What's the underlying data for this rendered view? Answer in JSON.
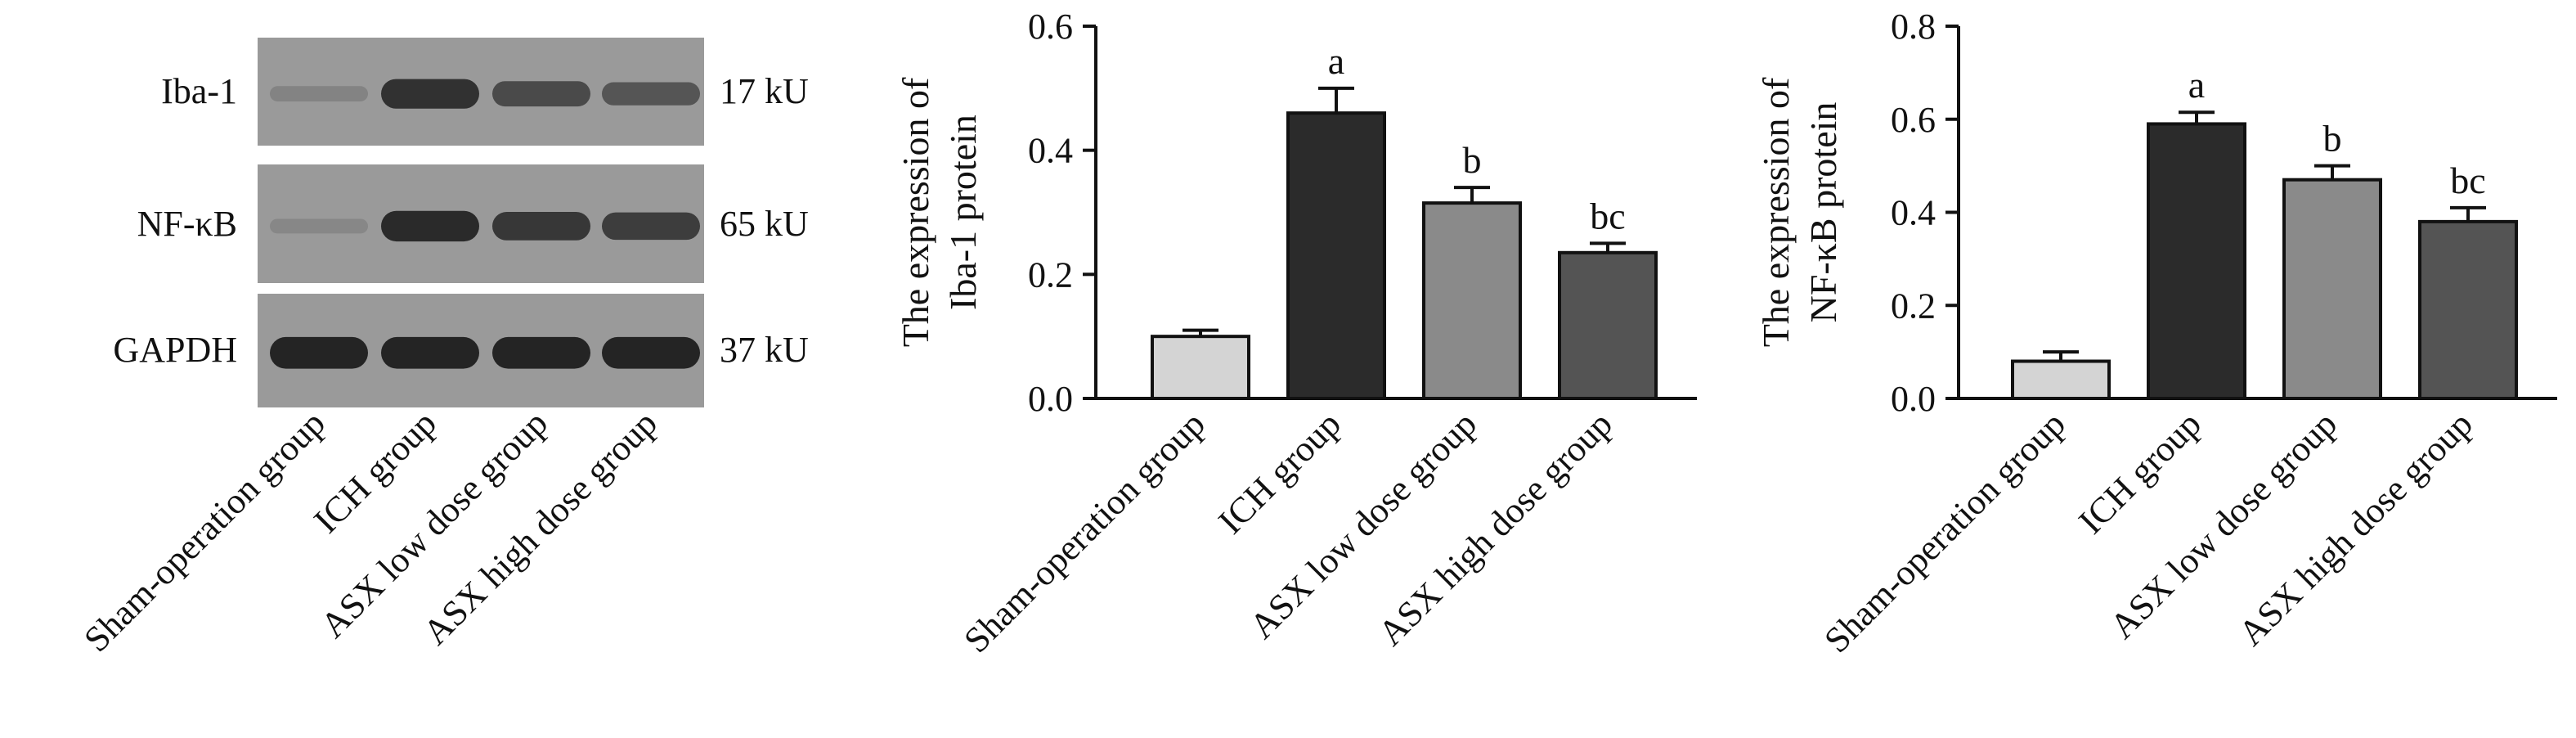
{
  "blot": {
    "rows": [
      {
        "protein": "Iba-1",
        "size": "17 kU",
        "intensities": [
          0.18,
          0.85,
          0.65,
          0.55
        ]
      },
      {
        "protein": "NF-κB",
        "size": "65 kU",
        "intensities": [
          0.15,
          0.9,
          0.8,
          0.75
        ]
      },
      {
        "protein": "GAPDH",
        "size": "37 kU",
        "intensities": [
          0.95,
          0.95,
          0.95,
          0.95
        ]
      }
    ],
    "lanes": [
      "Sham-operation group",
      "ICH group",
      "ASX low dose group",
      "ASX high dose group"
    ],
    "colors": {
      "background": "#9a9a9a",
      "band": "#1e1e1e"
    }
  },
  "chart_data": [
    {
      "type": "bar",
      "title": "",
      "xlabel": "",
      "ylabel": [
        "The expression of",
        "Iba-1 protein"
      ],
      "categories": [
        "Sham-operation group",
        "ICH group",
        "ASX low dose group",
        "ASX high dose group"
      ],
      "values": [
        0.1,
        0.46,
        0.315,
        0.235
      ],
      "errors": [
        0.01,
        0.04,
        0.025,
        0.015
      ],
      "annotations": [
        "",
        "a",
        "b",
        "bc"
      ],
      "ylim": [
        0,
        0.6
      ],
      "yticks": [
        "0.0",
        "0.2",
        "0.4",
        "0.6"
      ],
      "colors": [
        "#d4d4d4",
        "#2b2b2b",
        "#8a8a8a",
        "#545454"
      ],
      "grid": false
    },
    {
      "type": "bar",
      "title": "",
      "xlabel": "",
      "ylabel": [
        "The expression of",
        "NF-κB protein"
      ],
      "categories": [
        "Sham-operation group",
        "ICH group",
        "ASX low dose group",
        "ASX high dose group"
      ],
      "values": [
        0.08,
        0.59,
        0.47,
        0.38
      ],
      "errors": [
        0.02,
        0.025,
        0.03,
        0.03
      ],
      "annotations": [
        "",
        "a",
        "b",
        "bc"
      ],
      "ylim": [
        0,
        0.8
      ],
      "yticks": [
        "0.0",
        "0.2",
        "0.4",
        "0.6",
        "0.8"
      ],
      "colors": [
        "#d4d4d4",
        "#2b2b2b",
        "#8a8a8a",
        "#545454"
      ],
      "grid": false
    }
  ]
}
